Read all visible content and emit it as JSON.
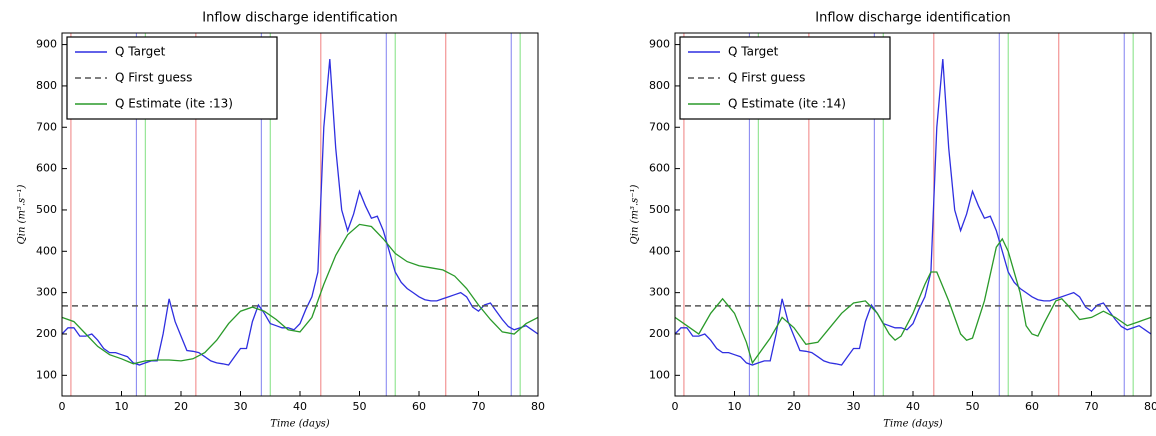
{
  "chart_data": [
    {
      "type": "line",
      "title": "Inflow discharge identification",
      "xlabel": "Time (days)",
      "ylabel": "Qin (m³.s⁻¹)",
      "xlim": [
        0,
        80
      ],
      "xticks": [
        0,
        10,
        20,
        30,
        40,
        50,
        60,
        70,
        80
      ],
      "ylim": [
        50,
        928
      ],
      "yticks": [
        100,
        200,
        300,
        400,
        500,
        600,
        700,
        800,
        900
      ],
      "legend": "upper left",
      "vlines": [
        {
          "color": "#f08080",
          "x": [
            1.5,
            22.5,
            43.5,
            64.5
          ]
        },
        {
          "color": "#8080f0",
          "x": [
            12.5,
            33.5,
            54.5,
            75.5
          ]
        },
        {
          "color": "#80e080",
          "x": [
            14,
            35,
            56,
            77
          ]
        }
      ],
      "series": [
        {
          "name": "Q Target",
          "color": "#2f2fe0",
          "dash": false,
          "x": [
            0,
            1,
            2,
            3,
            4,
            5,
            6,
            7,
            8,
            9,
            10,
            11,
            12,
            13,
            14,
            15,
            16,
            17,
            18,
            19,
            20,
            21,
            22,
            23,
            24,
            25,
            26,
            27,
            28,
            29,
            30,
            31,
            32,
            33,
            34,
            35,
            36,
            37,
            38,
            39,
            40,
            41,
            42,
            43,
            44,
            45,
            46,
            47,
            48,
            49,
            50,
            51,
            52,
            53,
            54,
            55,
            56,
            57,
            58,
            59,
            60,
            61,
            62,
            63,
            64,
            65,
            66,
            67,
            68,
            69,
            70,
            71,
            72,
            73,
            74,
            75,
            76,
            77,
            78,
            79,
            80
          ],
          "values": [
            200,
            215,
            215,
            195,
            195,
            200,
            185,
            165,
            155,
            155,
            150,
            145,
            130,
            125,
            130,
            135,
            135,
            200,
            285,
            230,
            195,
            160,
            158,
            155,
            145,
            135,
            130,
            128,
            125,
            145,
            165,
            165,
            230,
            270,
            250,
            225,
            220,
            215,
            215,
            210,
            225,
            260,
            290,
            350,
            700,
            865,
            650,
            500,
            450,
            490,
            545,
            510,
            480,
            485,
            450,
            400,
            350,
            325,
            310,
            300,
            290,
            283,
            280,
            280,
            285,
            290,
            295,
            300,
            290,
            265,
            255,
            270,
            275,
            255,
            235,
            218,
            210,
            215,
            220,
            210,
            200
          ]
        },
        {
          "name": "Q First guess",
          "color": "#555555",
          "dash": true,
          "x": [
            0,
            80
          ],
          "values": [
            268,
            268
          ]
        },
        {
          "name": "Q Estimate (ite :13)",
          "color": "#2a9a2a",
          "dash": false,
          "x": [
            0,
            2,
            4,
            6,
            8,
            10,
            12,
            14,
            16,
            18,
            20,
            22,
            24,
            26,
            28,
            30,
            32,
            34,
            36,
            38,
            40,
            42,
            44,
            46,
            48,
            50,
            52,
            54,
            56,
            58,
            60,
            62,
            64,
            66,
            68,
            70,
            72,
            74,
            76,
            78,
            80
          ],
          "values": [
            240,
            230,
            200,
            170,
            150,
            140,
            128,
            135,
            137,
            137,
            135,
            140,
            155,
            185,
            225,
            255,
            265,
            255,
            235,
            210,
            205,
            240,
            320,
            390,
            440,
            465,
            460,
            430,
            395,
            375,
            365,
            360,
            355,
            340,
            310,
            270,
            235,
            205,
            200,
            225,
            240
          ]
        }
      ]
    },
    {
      "type": "line",
      "title": "Inflow discharge identification",
      "xlabel": "Time (days)",
      "ylabel": "Qin (m³.s⁻¹)",
      "xlim": [
        0,
        80
      ],
      "xticks": [
        0,
        10,
        20,
        30,
        40,
        50,
        60,
        70,
        80
      ],
      "ylim": [
        50,
        928
      ],
      "yticks": [
        100,
        200,
        300,
        400,
        500,
        600,
        700,
        800,
        900
      ],
      "legend": "upper left",
      "vlines": [
        {
          "color": "#f08080",
          "x": [
            1.5,
            22.5,
            43.5,
            64.5
          ]
        },
        {
          "color": "#8080f0",
          "x": [
            12.5,
            33.5,
            54.5,
            75.5
          ]
        },
        {
          "color": "#80e080",
          "x": [
            14,
            35,
            56,
            77
          ]
        }
      ],
      "series": [
        {
          "name": "Q Target",
          "color": "#2f2fe0",
          "dash": false,
          "x": [
            0,
            1,
            2,
            3,
            4,
            5,
            6,
            7,
            8,
            9,
            10,
            11,
            12,
            13,
            14,
            15,
            16,
            17,
            18,
            19,
            20,
            21,
            22,
            23,
            24,
            25,
            26,
            27,
            28,
            29,
            30,
            31,
            32,
            33,
            34,
            35,
            36,
            37,
            38,
            39,
            40,
            41,
            42,
            43,
            44,
            45,
            46,
            47,
            48,
            49,
            50,
            51,
            52,
            53,
            54,
            55,
            56,
            57,
            58,
            59,
            60,
            61,
            62,
            63,
            64,
            65,
            66,
            67,
            68,
            69,
            70,
            71,
            72,
            73,
            74,
            75,
            76,
            77,
            78,
            79,
            80
          ],
          "values": [
            200,
            215,
            215,
            195,
            195,
            200,
            185,
            165,
            155,
            155,
            150,
            145,
            130,
            125,
            130,
            135,
            135,
            200,
            285,
            230,
            195,
            160,
            158,
            155,
            145,
            135,
            130,
            128,
            125,
            145,
            165,
            165,
            230,
            270,
            250,
            225,
            220,
            215,
            215,
            210,
            225,
            260,
            290,
            350,
            700,
            865,
            650,
            500,
            450,
            490,
            545,
            510,
            480,
            485,
            450,
            400,
            350,
            325,
            310,
            300,
            290,
            283,
            280,
            280,
            285,
            290,
            295,
            300,
            290,
            265,
            255,
            270,
            275,
            255,
            235,
            218,
            210,
            215,
            220,
            210,
            200
          ]
        },
        {
          "name": "Q First guess",
          "color": "#555555",
          "dash": true,
          "x": [
            0,
            80
          ],
          "values": [
            268,
            268
          ]
        },
        {
          "name": "Q Estimate (ite :14)",
          "color": "#2a9a2a",
          "dash": false,
          "x": [
            0,
            2,
            4,
            6,
            8,
            10,
            12,
            13,
            14,
            16,
            18,
            20,
            22,
            24,
            26,
            28,
            30,
            32,
            34,
            36,
            37,
            38,
            40,
            42,
            43,
            44,
            46,
            48,
            49,
            50,
            52,
            54,
            55,
            56,
            58,
            59,
            60,
            61,
            62,
            64,
            65,
            66,
            68,
            70,
            72,
            74,
            76,
            78,
            80
          ],
          "values": [
            240,
            220,
            200,
            250,
            285,
            250,
            180,
            130,
            150,
            190,
            240,
            215,
            175,
            180,
            215,
            250,
            275,
            280,
            250,
            200,
            185,
            195,
            250,
            320,
            350,
            350,
            280,
            200,
            185,
            190,
            280,
            410,
            430,
            400,
            300,
            220,
            200,
            195,
            225,
            280,
            285,
            270,
            235,
            240,
            255,
            240,
            220,
            230,
            240
          ]
        }
      ]
    }
  ]
}
